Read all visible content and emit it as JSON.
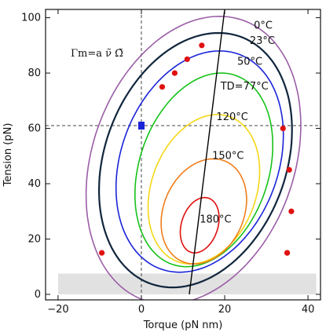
{
  "chart_data": {
    "type": "line",
    "xlabel": "Torque (pN nm)",
    "ylabel": "Tension (pN)",
    "xlim": [
      -23,
      43
    ],
    "ylim": [
      -2,
      103
    ],
    "xticks": [
      -20,
      0,
      20,
      40
    ],
    "yticks": [
      0,
      20,
      40,
      60,
      80,
      100
    ],
    "formula": "Γm=a ν̃ Ω̃",
    "reference_lines": {
      "x": 0,
      "y": 61
    },
    "shaded_band": {
      "y": [
        0,
        7.5
      ]
    },
    "series": [
      {
        "name": "0°C",
        "color": "#9a5ea6",
        "center": [
          12.5,
          48.5
        ],
        "rx": 25,
        "ry": 52,
        "label_at": [
          27,
          96
        ]
      },
      {
        "name": "23°C",
        "color": "#10263d",
        "center": [
          13,
          48.5
        ],
        "rx": 22.5,
        "ry": 46,
        "label_at": [
          26,
          90.5
        ]
      },
      {
        "name": "50°C",
        "color": "#1a24d8",
        "center": [
          14,
          48
        ],
        "rx": 19.5,
        "ry": 40,
        "label_at": [
          23,
          83
        ]
      },
      {
        "name": "TD=77°C",
        "color": "#17c21a",
        "center": [
          15,
          45
        ],
        "rx": 16,
        "ry": 35,
        "label_at": [
          19,
          74
        ]
      },
      {
        "name": "120°C",
        "color": "#f5d716",
        "center": [
          15,
          38
        ],
        "rx": 13,
        "ry": 27,
        "label_at": [
          18,
          63
        ]
      },
      {
        "name": "150°C",
        "color": "#f07d1a",
        "center": [
          15,
          30
        ],
        "rx": 10,
        "ry": 19,
        "label_at": [
          17,
          49
        ]
      },
      {
        "name": "180°C",
        "color": "#e01010",
        "center": [
          14,
          25
        ],
        "rx": 4.5,
        "ry": 10,
        "label_at": [
          14,
          26
        ]
      }
    ],
    "trend_line": {
      "color": "#000000",
      "x": [
        11.5,
        20
      ],
      "y": [
        0,
        103
      ]
    },
    "points_23C": {
      "color": "#e01010",
      "x": [
        -9.5,
        5,
        8,
        11,
        14.5,
        34,
        35.5,
        36,
        35,
        35
      ],
      "y": [
        15,
        75,
        80,
        85,
        90,
        60,
        45,
        30,
        15,
        15
      ]
    },
    "marker": {
      "color": "#1a24d8",
      "x": 0,
      "y": 61
    }
  }
}
